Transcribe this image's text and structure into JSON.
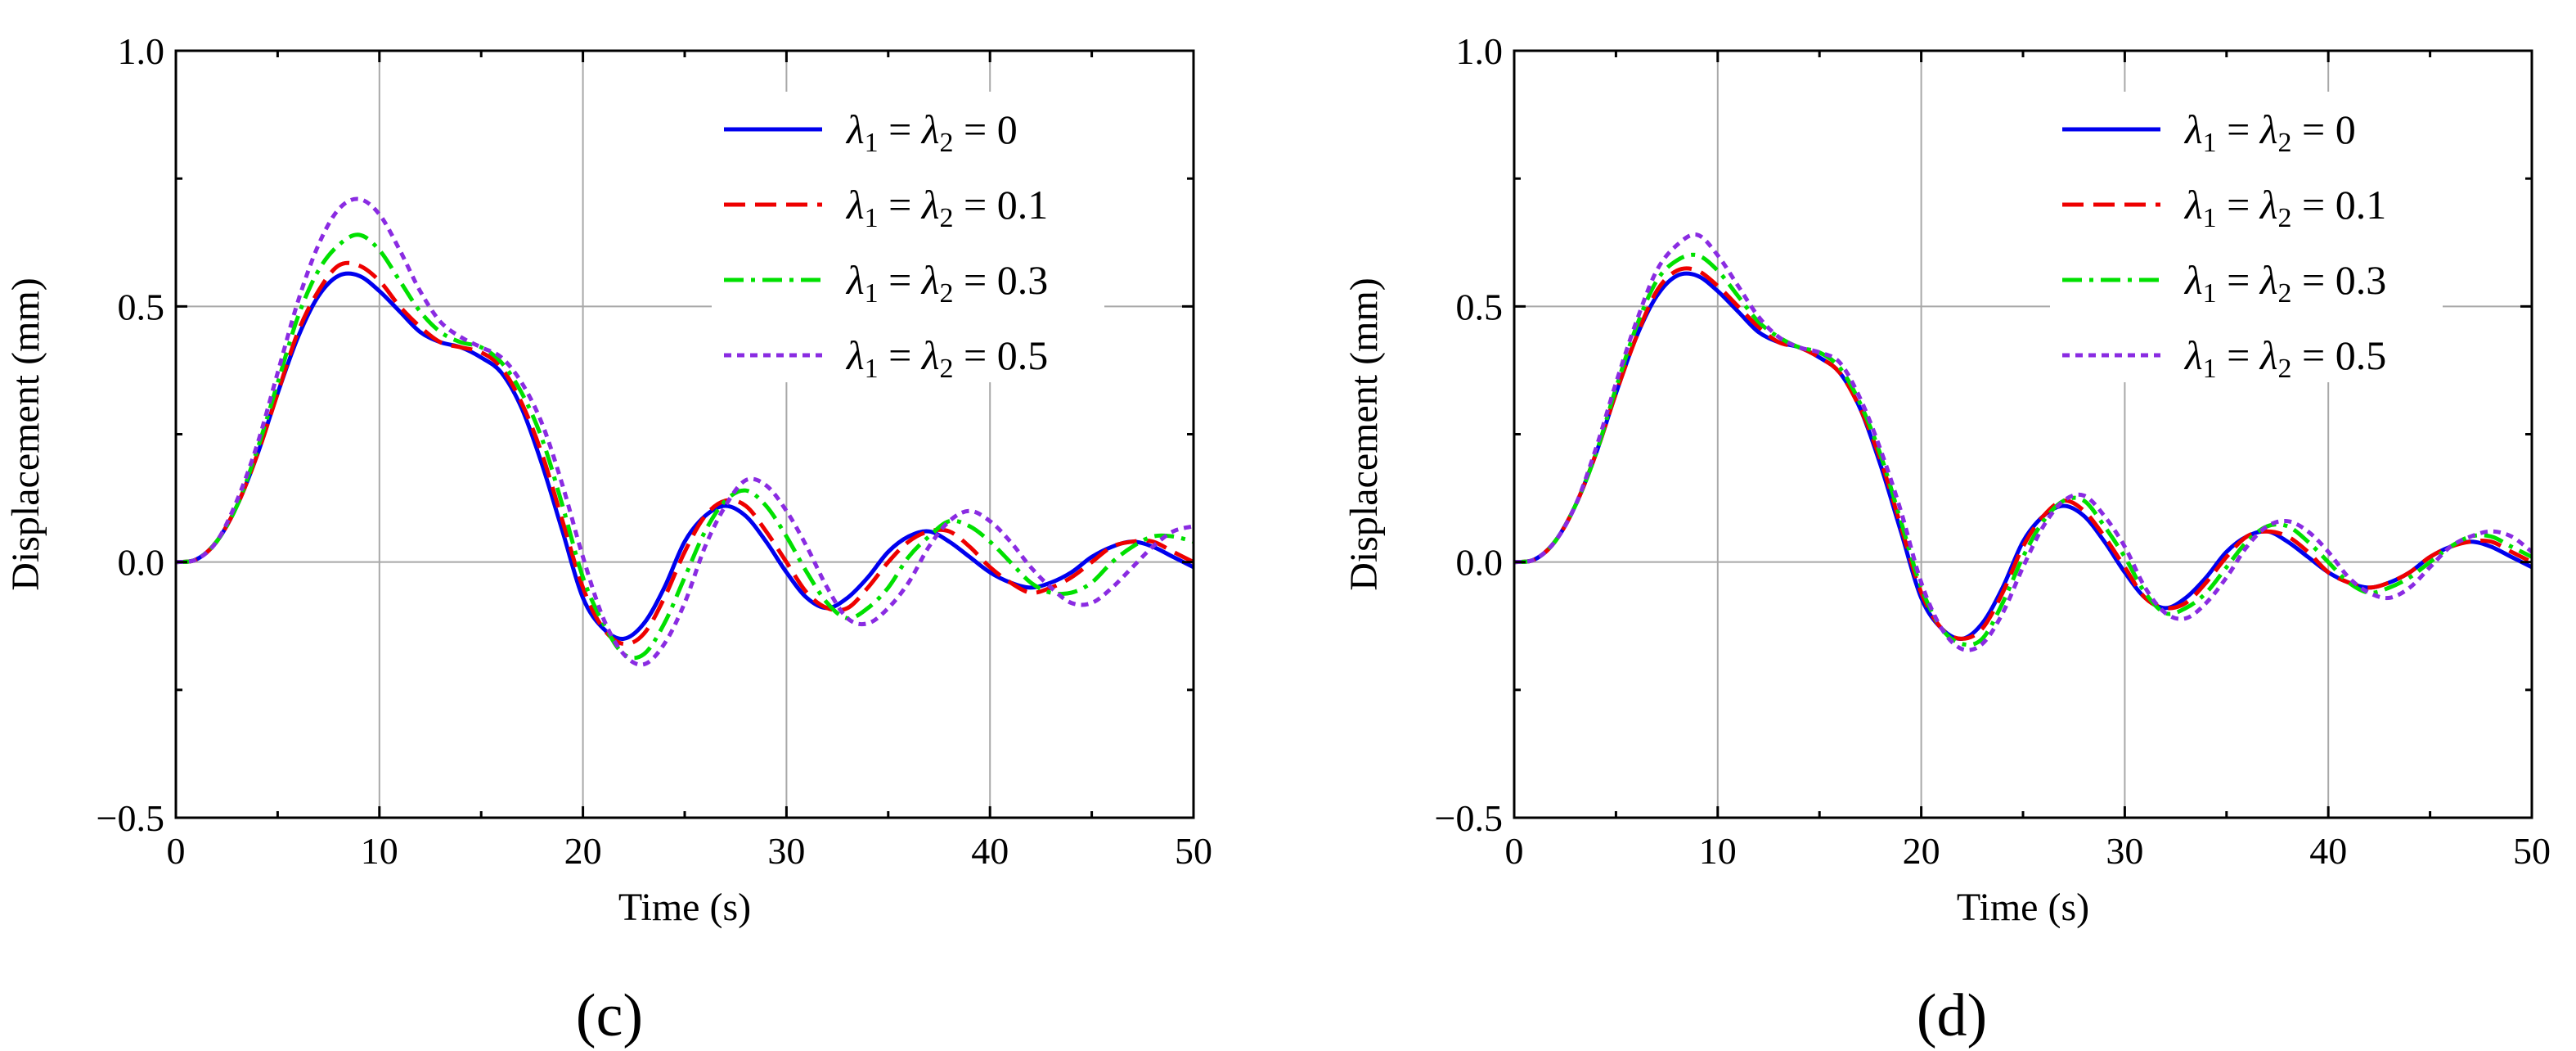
{
  "figure": {
    "panels": [
      "(c)",
      "(d)"
    ]
  },
  "chart_data": [
    {
      "type": "line",
      "panel_label": "(c)",
      "xlabel": "Time (s)",
      "ylabel": "Displacement (mm)",
      "xlim": [
        0,
        50
      ],
      "ylim": [
        -0.5,
        1.0
      ],
      "xticks": [
        0,
        10,
        20,
        30,
        40,
        50
      ],
      "yticks": [
        -0.5,
        0.0,
        0.5,
        1.0
      ],
      "xtick_labels": [
        "0",
        "10",
        "20",
        "30",
        "40",
        "50"
      ],
      "ytick_labels": [
        "−0.5",
        "0.0",
        "0.5",
        "1.0"
      ],
      "grid": true,
      "legend_position": "top-right",
      "x": [
        0,
        1,
        2,
        3,
        4,
        5,
        6,
        7,
        8,
        9,
        10,
        11,
        12,
        13,
        14,
        15,
        16,
        17,
        18,
        19,
        20,
        21,
        22,
        23,
        24,
        25,
        26,
        27,
        28,
        29,
        30,
        31,
        32,
        33,
        34,
        35,
        36,
        37,
        38,
        39,
        40,
        41,
        42,
        43,
        44,
        45,
        46,
        47,
        48,
        49,
        50
      ],
      "series": [
        {
          "name": "λ1 = λ2 = 0",
          "legend_value": "0",
          "color": "#0000ee",
          "dash": "solid",
          "values": [
            0.0,
            0.005,
            0.04,
            0.11,
            0.21,
            0.33,
            0.44,
            0.52,
            0.56,
            0.56,
            0.53,
            0.49,
            0.45,
            0.43,
            0.42,
            0.4,
            0.37,
            0.3,
            0.19,
            0.06,
            -0.07,
            -0.13,
            -0.15,
            -0.12,
            -0.05,
            0.04,
            0.09,
            0.11,
            0.09,
            0.04,
            -0.02,
            -0.07,
            -0.09,
            -0.07,
            -0.03,
            0.02,
            0.05,
            0.06,
            0.04,
            0.01,
            -0.02,
            -0.04,
            -0.05,
            -0.04,
            -0.02,
            0.01,
            0.03,
            0.04,
            0.03,
            0.01,
            -0.01
          ]
        },
        {
          "name": "λ1 = λ2 = 0.1",
          "legend_value": "0.1",
          "color": "#ee0000",
          "dash": "dashed",
          "values": [
            0.0,
            0.005,
            0.04,
            0.11,
            0.21,
            0.33,
            0.45,
            0.53,
            0.58,
            0.58,
            0.55,
            0.5,
            0.46,
            0.43,
            0.42,
            0.41,
            0.38,
            0.31,
            0.21,
            0.08,
            -0.05,
            -0.13,
            -0.16,
            -0.14,
            -0.07,
            0.02,
            0.09,
            0.12,
            0.11,
            0.06,
            0.0,
            -0.06,
            -0.09,
            -0.09,
            -0.05,
            0.0,
            0.04,
            0.06,
            0.06,
            0.03,
            -0.01,
            -0.04,
            -0.06,
            -0.05,
            -0.03,
            0.0,
            0.03,
            0.04,
            0.04,
            0.02,
            0.0
          ]
        },
        {
          "name": "λ1 = λ2 = 0.3",
          "legend_value": "0.3",
          "color": "#00e000",
          "dash": "dashdot",
          "values": [
            0.0,
            0.005,
            0.04,
            0.11,
            0.22,
            0.35,
            0.48,
            0.57,
            0.62,
            0.64,
            0.61,
            0.55,
            0.49,
            0.45,
            0.43,
            0.42,
            0.39,
            0.33,
            0.24,
            0.11,
            -0.03,
            -0.12,
            -0.18,
            -0.18,
            -0.12,
            -0.03,
            0.06,
            0.12,
            0.14,
            0.11,
            0.05,
            -0.02,
            -0.08,
            -0.11,
            -0.09,
            -0.05,
            0.01,
            0.05,
            0.08,
            0.07,
            0.04,
            0.0,
            -0.04,
            -0.06,
            -0.06,
            -0.04,
            0.0,
            0.03,
            0.05,
            0.05,
            0.04
          ]
        },
        {
          "name": "λ1 = λ2 = 0.5",
          "legend_value": "0.5",
          "color": "#8a2be2",
          "dash": "dotted",
          "values": [
            0.0,
            0.005,
            0.04,
            0.12,
            0.23,
            0.37,
            0.51,
            0.62,
            0.69,
            0.71,
            0.68,
            0.61,
            0.53,
            0.47,
            0.44,
            0.42,
            0.4,
            0.35,
            0.27,
            0.15,
            0.01,
            -0.11,
            -0.18,
            -0.2,
            -0.16,
            -0.08,
            0.03,
            0.11,
            0.16,
            0.15,
            0.1,
            0.03,
            -0.05,
            -0.11,
            -0.12,
            -0.09,
            -0.04,
            0.03,
            0.08,
            0.1,
            0.08,
            0.04,
            -0.01,
            -0.05,
            -0.08,
            -0.08,
            -0.05,
            -0.01,
            0.03,
            0.06,
            0.07
          ]
        }
      ]
    },
    {
      "type": "line",
      "panel_label": "(d)",
      "xlabel": "Time (s)",
      "ylabel": "Displacement (mm)",
      "xlim": [
        0,
        50
      ],
      "ylim": [
        -0.5,
        1.0
      ],
      "xticks": [
        0,
        10,
        20,
        30,
        40,
        50
      ],
      "yticks": [
        -0.5,
        0.0,
        0.5,
        1.0
      ],
      "xtick_labels": [
        "0",
        "10",
        "20",
        "30",
        "40",
        "50"
      ],
      "ytick_labels": [
        "−0.5",
        "0.0",
        "0.5",
        "1.0"
      ],
      "grid": true,
      "legend_position": "top-right",
      "x": [
        0,
        1,
        2,
        3,
        4,
        5,
        6,
        7,
        8,
        9,
        10,
        11,
        12,
        13,
        14,
        15,
        16,
        17,
        18,
        19,
        20,
        21,
        22,
        23,
        24,
        25,
        26,
        27,
        28,
        29,
        30,
        31,
        32,
        33,
        34,
        35,
        36,
        37,
        38,
        39,
        40,
        41,
        42,
        43,
        44,
        45,
        46,
        47,
        48,
        49,
        50
      ],
      "series": [
        {
          "name": "λ1 = λ2 = 0",
          "legend_value": "0",
          "color": "#0000ee",
          "dash": "solid",
          "values": [
            0.0,
            0.005,
            0.04,
            0.11,
            0.21,
            0.33,
            0.44,
            0.52,
            0.56,
            0.56,
            0.53,
            0.49,
            0.45,
            0.43,
            0.42,
            0.4,
            0.37,
            0.3,
            0.19,
            0.06,
            -0.07,
            -0.13,
            -0.15,
            -0.12,
            -0.05,
            0.04,
            0.09,
            0.11,
            0.09,
            0.04,
            -0.02,
            -0.07,
            -0.09,
            -0.07,
            -0.03,
            0.02,
            0.05,
            0.06,
            0.04,
            0.01,
            -0.02,
            -0.04,
            -0.05,
            -0.04,
            -0.02,
            0.01,
            0.03,
            0.04,
            0.03,
            0.01,
            -0.01
          ]
        },
        {
          "name": "λ1 = λ2 = 0.1",
          "legend_value": "0.1",
          "color": "#ee0000",
          "dash": "dashed",
          "values": [
            0.0,
            0.005,
            0.04,
            0.11,
            0.21,
            0.33,
            0.44,
            0.53,
            0.57,
            0.57,
            0.54,
            0.5,
            0.46,
            0.43,
            0.42,
            0.4,
            0.37,
            0.3,
            0.2,
            0.07,
            -0.06,
            -0.13,
            -0.15,
            -0.13,
            -0.06,
            0.03,
            0.09,
            0.12,
            0.1,
            0.05,
            -0.01,
            -0.07,
            -0.09,
            -0.08,
            -0.04,
            0.01,
            0.05,
            0.06,
            0.05,
            0.02,
            -0.02,
            -0.04,
            -0.05,
            -0.04,
            -0.02,
            0.01,
            0.03,
            0.04,
            0.04,
            0.02,
            0.0
          ]
        },
        {
          "name": "λ1 = λ2 = 0.3",
          "legend_value": "0.3",
          "color": "#00e000",
          "dash": "dashdot",
          "values": [
            0.0,
            0.005,
            0.04,
            0.11,
            0.21,
            0.34,
            0.46,
            0.55,
            0.59,
            0.6,
            0.57,
            0.52,
            0.47,
            0.44,
            0.42,
            0.41,
            0.38,
            0.31,
            0.21,
            0.08,
            -0.05,
            -0.13,
            -0.16,
            -0.15,
            -0.08,
            0.01,
            0.08,
            0.12,
            0.12,
            0.07,
            0.01,
            -0.06,
            -0.1,
            -0.09,
            -0.06,
            -0.01,
            0.04,
            0.07,
            0.07,
            0.04,
            0.0,
            -0.04,
            -0.06,
            -0.05,
            -0.03,
            0.0,
            0.03,
            0.05,
            0.05,
            0.03,
            0.01
          ]
        },
        {
          "name": "λ1 = λ2 = 0.5",
          "legend_value": "0.5",
          "color": "#8a2be2",
          "dash": "dotted",
          "values": [
            0.0,
            0.005,
            0.04,
            0.11,
            0.22,
            0.35,
            0.47,
            0.57,
            0.62,
            0.64,
            0.6,
            0.54,
            0.48,
            0.44,
            0.42,
            0.41,
            0.39,
            0.32,
            0.22,
            0.1,
            -0.04,
            -0.13,
            -0.17,
            -0.16,
            -0.1,
            -0.01,
            0.07,
            0.12,
            0.13,
            0.09,
            0.03,
            -0.05,
            -0.1,
            -0.11,
            -0.08,
            -0.03,
            0.03,
            0.07,
            0.08,
            0.06,
            0.02,
            -0.03,
            -0.06,
            -0.07,
            -0.05,
            -0.01,
            0.03,
            0.05,
            0.06,
            0.05,
            0.02
          ]
        }
      ]
    }
  ]
}
